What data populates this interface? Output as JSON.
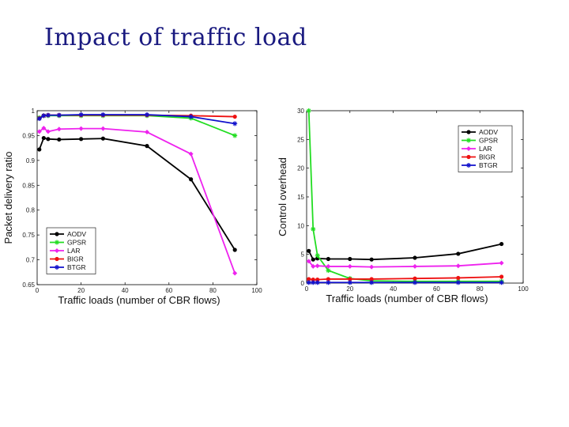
{
  "slide": {
    "title": "Impact of traffic load"
  },
  "chart_data": [
    {
      "type": "line",
      "xlabel": "Traffic loads (number of CBR flows)",
      "ylabel": "Packet delivery ratio",
      "xlim": [
        0,
        100
      ],
      "ylim": [
        0.65,
        1.0
      ],
      "x_ticks": [
        0,
        20,
        40,
        60,
        80,
        100
      ],
      "y_ticks": [
        0.65,
        0.7,
        0.75,
        0.8,
        0.85,
        0.9,
        0.95,
        1
      ],
      "x_tick_labels": [
        "0",
        "20",
        "40",
        "60",
        "80",
        "100"
      ],
      "y_tick_labels": [
        "0.65",
        "0.7",
        "0.75",
        "0.8",
        "0.85",
        "0.9",
        "0.95",
        "1"
      ],
      "legend_position": "bottom-left",
      "series": [
        {
          "name": "AODV",
          "color": "#000000",
          "marker": "circle",
          "x": [
            1,
            3,
            5,
            10,
            20,
            30,
            50,
            70,
            90
          ],
          "values": [
            0.922,
            0.945,
            0.943,
            0.942,
            0.943,
            0.944,
            0.929,
            0.862,
            0.72
          ]
        },
        {
          "name": "GPSR",
          "color": "#22dd22",
          "marker": "star",
          "x": [
            1,
            3,
            5,
            10,
            20,
            30,
            50,
            70,
            90
          ],
          "values": [
            0.986,
            0.99,
            0.99,
            0.99,
            0.99,
            0.99,
            0.99,
            0.985,
            0.95
          ]
        },
        {
          "name": "LAR",
          "color": "#ee22ee",
          "marker": "diamond",
          "x": [
            1,
            3,
            5,
            10,
            20,
            30,
            50,
            70,
            90
          ],
          "values": [
            0.958,
            0.965,
            0.958,
            0.963,
            0.964,
            0.964,
            0.957,
            0.913,
            0.673
          ]
        },
        {
          "name": "BIGR",
          "color": "#ee1111",
          "marker": "circle",
          "x": [
            1,
            3,
            5,
            10,
            20,
            30,
            50,
            70,
            90
          ],
          "values": [
            0.985,
            0.99,
            0.991,
            0.991,
            0.991,
            0.991,
            0.991,
            0.99,
            0.988
          ]
        },
        {
          "name": "BTGR",
          "color": "#1111cc",
          "marker": "star",
          "x": [
            1,
            3,
            5,
            10,
            20,
            30,
            50,
            70,
            90
          ],
          "values": [
            0.984,
            0.99,
            0.991,
            0.991,
            0.992,
            0.992,
            0.992,
            0.988,
            0.974
          ]
        }
      ]
    },
    {
      "type": "line",
      "xlabel": "Traffic loads (number of CBR flows)",
      "ylabel": "Control overhead",
      "xlim": [
        0,
        100
      ],
      "ylim": [
        0,
        30
      ],
      "x_ticks": [
        0,
        20,
        40,
        60,
        80,
        100
      ],
      "y_ticks": [
        0,
        5,
        10,
        15,
        20,
        25,
        30
      ],
      "x_tick_labels": [
        "0",
        "20",
        "40",
        "60",
        "80",
        "100"
      ],
      "y_tick_labels": [
        "0",
        "5",
        "10",
        "15",
        "20",
        "25",
        "30"
      ],
      "legend_position": "top-right",
      "series": [
        {
          "name": "AODV",
          "color": "#000000",
          "marker": "circle",
          "x": [
            1,
            3,
            5,
            10,
            20,
            30,
            50,
            70,
            90
          ],
          "values": [
            5.6,
            4.1,
            4.3,
            4.2,
            4.2,
            4.1,
            4.4,
            5.1,
            6.8
          ]
        },
        {
          "name": "GPSR",
          "color": "#22dd22",
          "marker": "star",
          "x": [
            1,
            3,
            5,
            10,
            20,
            30,
            50,
            70,
            90
          ],
          "values": [
            30,
            9.4,
            4.8,
            2.2,
            0.8,
            0.4,
            0.3,
            0.3,
            0.3
          ]
        },
        {
          "name": "LAR",
          "color": "#ee22ee",
          "marker": "diamond",
          "x": [
            1,
            3,
            5,
            10,
            20,
            30,
            50,
            70,
            90
          ],
          "values": [
            3.8,
            2.9,
            3.0,
            2.9,
            2.9,
            2.8,
            2.9,
            3.0,
            3.5
          ]
        },
        {
          "name": "BIGR",
          "color": "#ee1111",
          "marker": "circle",
          "x": [
            1,
            3,
            5,
            10,
            20,
            30,
            50,
            70,
            90
          ],
          "values": [
            0.7,
            0.6,
            0.6,
            0.7,
            0.7,
            0.7,
            0.8,
            0.9,
            1.1
          ]
        },
        {
          "name": "BTGR",
          "color": "#1111cc",
          "marker": "star",
          "x": [
            1,
            3,
            5,
            10,
            20,
            30,
            50,
            70,
            90
          ],
          "values": [
            0.1,
            0.1,
            0.1,
            0.1,
            0.1,
            0.1,
            0.1,
            0.1,
            0.1
          ]
        }
      ]
    }
  ]
}
